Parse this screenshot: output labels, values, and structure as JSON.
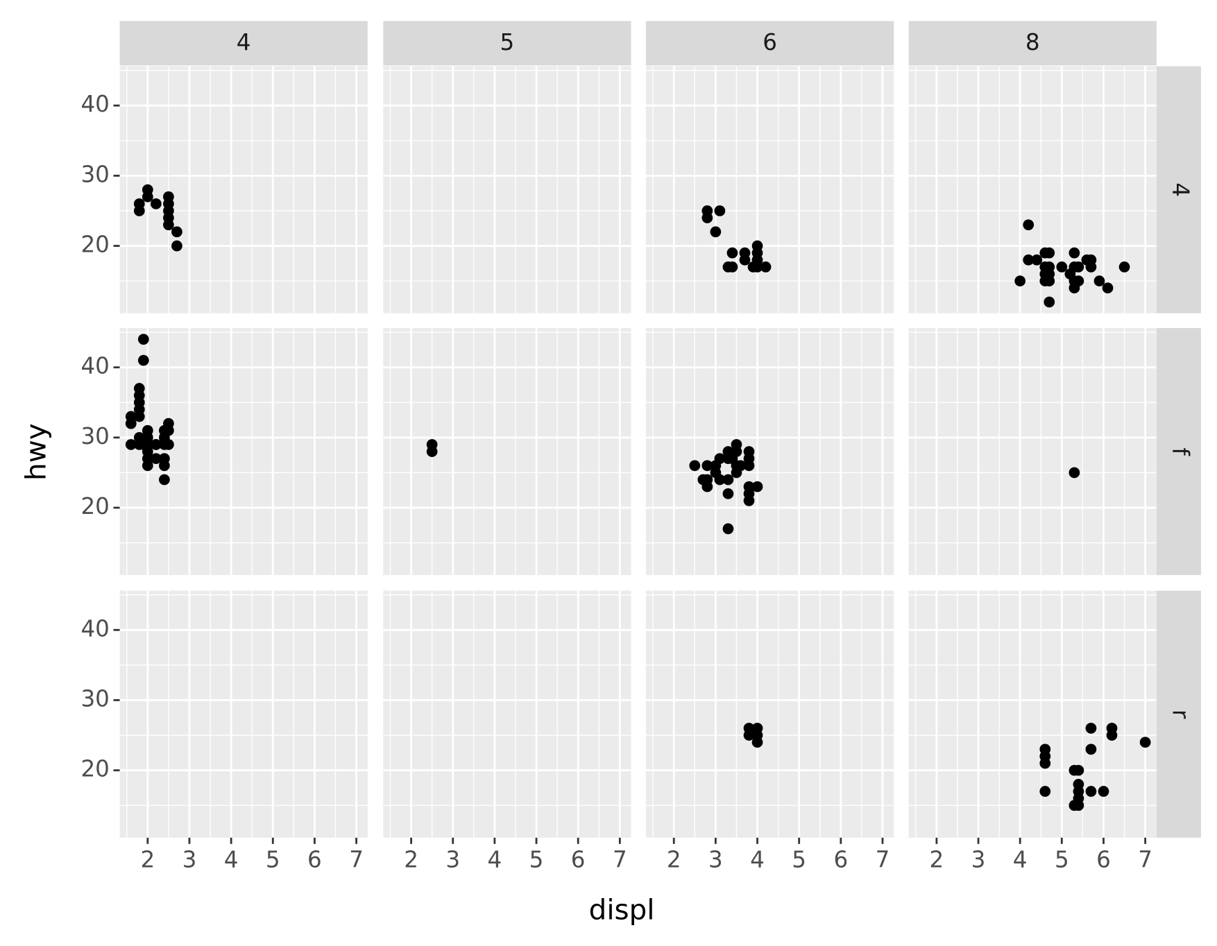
{
  "chart_data": {
    "type": "scatter",
    "x_label": "displ",
    "y_label": "hwy",
    "color": "#000000",
    "col_labels": [
      "4",
      "5",
      "6",
      "8"
    ],
    "row_labels": [
      "4",
      "f",
      "r"
    ],
    "xlim": [
      1.33,
      7.27
    ],
    "ylim": [
      10.4,
      45.6
    ],
    "xticks": [
      2,
      3,
      4,
      5,
      6,
      7
    ],
    "yticks": [
      20,
      30,
      40
    ],
    "minor_xticks": [
      1.5,
      2.5,
      3.5,
      4.5,
      5.5,
      6.5
    ],
    "minor_yticks": [
      15,
      25,
      35,
      45
    ],
    "grid": true,
    "panels": [
      {
        "x": [
          1.8,
          1.8,
          2.0,
          2.0,
          2.2,
          2.5,
          2.5,
          2.5,
          2.5,
          2.5,
          2.7,
          2.7
        ],
        "y": [
          26,
          25,
          28,
          27,
          26,
          27,
          26,
          25,
          24,
          23,
          22,
          20
        ]
      },
      {
        "x": [],
        "y": []
      },
      {
        "x": [
          2.8,
          2.8,
          3.1,
          3.0,
          3.3,
          3.4,
          3.4,
          3.7,
          3.7,
          3.9,
          4.0,
          4.0,
          4.0,
          4.0,
          4.2
        ],
        "y": [
          25,
          24,
          25,
          22,
          17,
          19,
          17,
          19,
          18,
          17,
          20,
          19,
          18,
          17,
          17
        ]
      },
      {
        "x": [
          4.0,
          4.2,
          4.2,
          4.4,
          4.6,
          4.6,
          4.6,
          4.6,
          4.7,
          4.7,
          4.7,
          4.7,
          4.7,
          5.0,
          5.2,
          5.3,
          5.3,
          5.3,
          5.3,
          5.4,
          5.4,
          5.6,
          5.7,
          5.7,
          5.9,
          6.1,
          6.5
        ],
        "y": [
          15,
          23,
          18,
          18,
          19,
          17,
          16,
          15,
          19,
          17,
          16,
          15,
          12,
          17,
          16,
          19,
          17,
          15,
          14,
          17,
          15,
          18,
          18,
          17,
          15,
          14,
          17
        ]
      },
      {
        "x": [
          1.6,
          1.6,
          1.6,
          1.6,
          1.8,
          1.8,
          1.8,
          1.8,
          1.8,
          1.8,
          1.8,
          1.9,
          1.9,
          1.9,
          2.0,
          2.0,
          2.0,
          2.0,
          2.0,
          2.0,
          2.2,
          2.2,
          2.2,
          2.4,
          2.4,
          2.4,
          2.4,
          2.4,
          2.4,
          2.5,
          2.5,
          2.5
        ],
        "y": [
          33,
          32,
          29,
          32,
          37,
          36,
          35,
          34,
          33,
          30,
          29,
          44,
          41,
          29,
          31,
          30,
          29,
          28,
          27,
          26,
          29,
          27,
          29,
          31,
          30,
          29,
          27,
          26,
          24,
          32,
          31,
          29
        ]
      },
      {
        "x": [
          2.5,
          2.5
        ],
        "y": [
          29,
          28
        ]
      },
      {
        "x": [
          2.5,
          2.7,
          2.8,
          2.8,
          2.8,
          3.0,
          3.0,
          3.1,
          3.1,
          3.3,
          3.3,
          3.3,
          3.3,
          3.3,
          3.4,
          3.5,
          3.5,
          3.5,
          3.5,
          3.6,
          3.8,
          3.8,
          3.8,
          3.8,
          3.8,
          3.8,
          4.0
        ],
        "y": [
          26,
          24,
          26,
          24,
          23,
          26,
          25,
          27,
          24,
          28,
          27,
          24,
          22,
          17,
          27,
          29,
          28,
          26,
          25,
          26,
          28,
          27,
          26,
          23,
          22,
          21,
          23
        ]
      },
      {
        "x": [
          5.3
        ],
        "y": [
          25
        ]
      },
      {
        "x": [],
        "y": []
      },
      {
        "x": [],
        "y": []
      },
      {
        "x": [
          3.8,
          3.8,
          4.0,
          4.0,
          4.0
        ],
        "y": [
          26,
          25,
          26,
          25,
          24
        ]
      },
      {
        "x": [
          4.6,
          4.6,
          4.6,
          4.6,
          5.3,
          5.3,
          5.4,
          5.4,
          5.4,
          5.4,
          5.4,
          5.7,
          5.7,
          5.7,
          6.0,
          6.2,
          6.2,
          7.0
        ],
        "y": [
          23,
          22,
          21,
          17,
          20,
          15,
          20,
          18,
          17,
          16,
          15,
          26,
          23,
          17,
          17,
          26,
          25,
          24
        ]
      }
    ]
  }
}
